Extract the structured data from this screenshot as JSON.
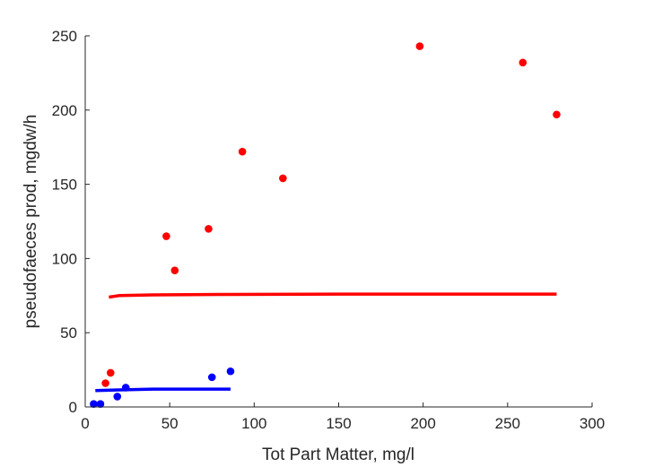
{
  "chart_data": {
    "type": "scatter",
    "xlabel": "Tot Part Matter, mg/l",
    "ylabel": "pseudofaeces prod, mgdw/h",
    "xlim": [
      0,
      300
    ],
    "ylim": [
      0,
      250
    ],
    "xticks": [
      0,
      50,
      100,
      150,
      200,
      250,
      300
    ],
    "yticks": [
      0,
      50,
      100,
      150,
      200,
      250
    ],
    "grid": false,
    "legend": "none",
    "series": [
      {
        "kind": "points",
        "color": "#ff0000",
        "points": [
          [
            12,
            16
          ],
          [
            15,
            23
          ],
          [
            48,
            115
          ],
          [
            53,
            92
          ],
          [
            73,
            120
          ],
          [
            93,
            172
          ],
          [
            117,
            154
          ],
          [
            198,
            243
          ],
          [
            259,
            232
          ],
          [
            279,
            197
          ]
        ]
      },
      {
        "kind": "points",
        "color": "#0000ff",
        "points": [
          [
            5,
            2
          ],
          [
            9,
            2
          ],
          [
            19,
            7
          ],
          [
            24,
            13
          ],
          [
            75,
            20
          ],
          [
            86,
            24
          ]
        ]
      },
      {
        "kind": "line",
        "color": "#ff0000",
        "points": [
          [
            14,
            74
          ],
          [
            20,
            75
          ],
          [
            40,
            75.5
          ],
          [
            80,
            75.8
          ],
          [
            150,
            76
          ],
          [
            220,
            76
          ],
          [
            279,
            76
          ]
        ]
      },
      {
        "kind": "line",
        "color": "#0000ff",
        "points": [
          [
            6,
            11
          ],
          [
            20,
            11.5
          ],
          [
            40,
            12
          ],
          [
            60,
            12
          ],
          [
            86,
            12
          ]
        ]
      }
    ]
  }
}
